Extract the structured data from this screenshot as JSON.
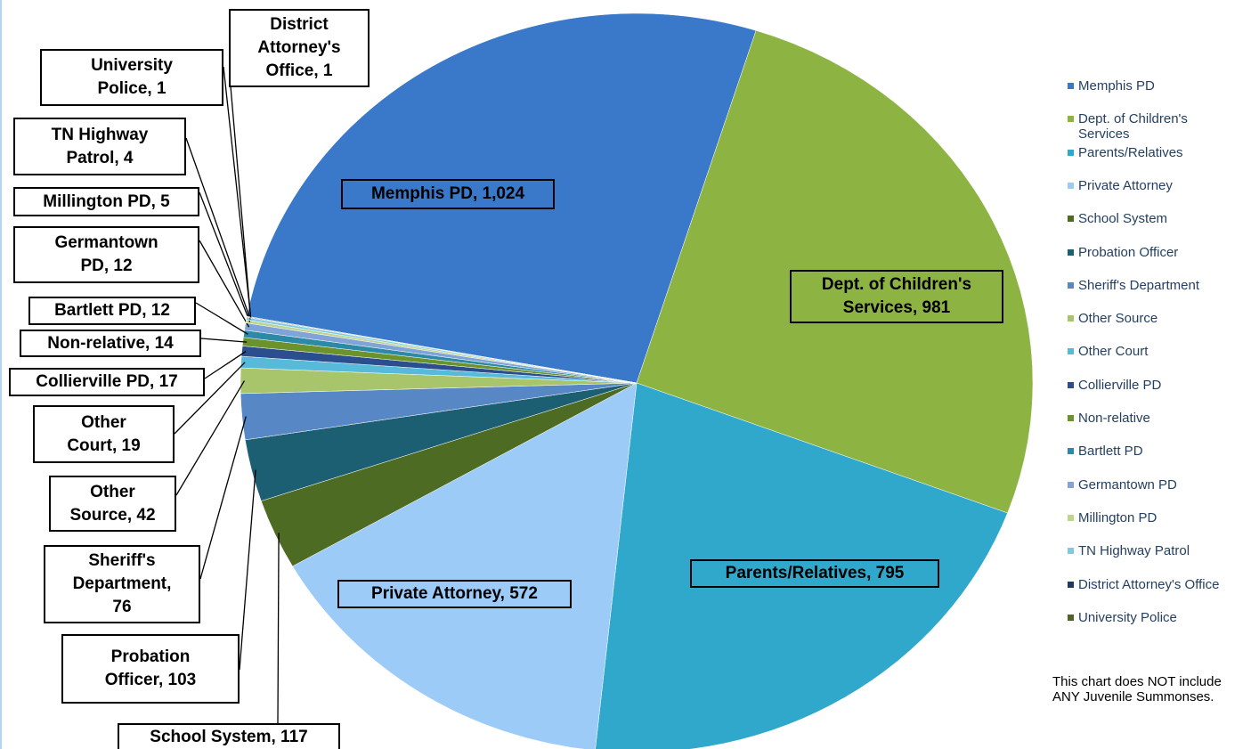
{
  "chart_data": {
    "type": "pie",
    "categories": [
      "Memphis PD",
      "Dept. of Children's Services",
      "Parents/Relatives",
      "Private Attorney",
      "School System",
      "Probation Officer",
      "Sheriff's Department",
      "Other Source",
      "Other Court",
      "Collierville PD",
      "Non-relative",
      "Bartlett PD",
      "Germantown PD",
      "Millington PD",
      "TN Highway Patrol",
      "District Attorney's Office",
      "University Police"
    ],
    "values": [
      1024,
      981,
      795,
      572,
      117,
      103,
      76,
      42,
      19,
      17,
      14,
      12,
      12,
      5,
      4,
      1,
      1
    ],
    "value_labels": [
      "Memphis PD, 1,024",
      "Dept. of Children's Services, 981",
      "Parents/Relatives, 795",
      "Private Attorney,  572",
      "School System, 117",
      "Probation Officer, 103",
      "Sheriff's Department, 76",
      "Other Source, 42",
      "Other Court, 19",
      "Collierville PD, 17",
      "Non-relative, 14",
      "Bartlett PD, 12",
      "Germantown PD, 12",
      "Millington PD, 5",
      "TN Highway Patrol, 4",
      "District Attorney's Office, 1",
      "University Police, 1"
    ],
    "colors": [
      "#3a78c9",
      "#8db342",
      "#2fa8cb",
      "#9bcbf6",
      "#4d6b22",
      "#1c5f73",
      "#5887c6",
      "#a9c56b",
      "#57badb",
      "#2b4e8e",
      "#6c922b",
      "#2d8aa6",
      "#80a3d8",
      "#bdd58c",
      "#7fcae2",
      "#1f3864",
      "#4f6228"
    ],
    "legend": "right",
    "note": "This chart does NOT include ANY Juvenile Summonses."
  }
}
